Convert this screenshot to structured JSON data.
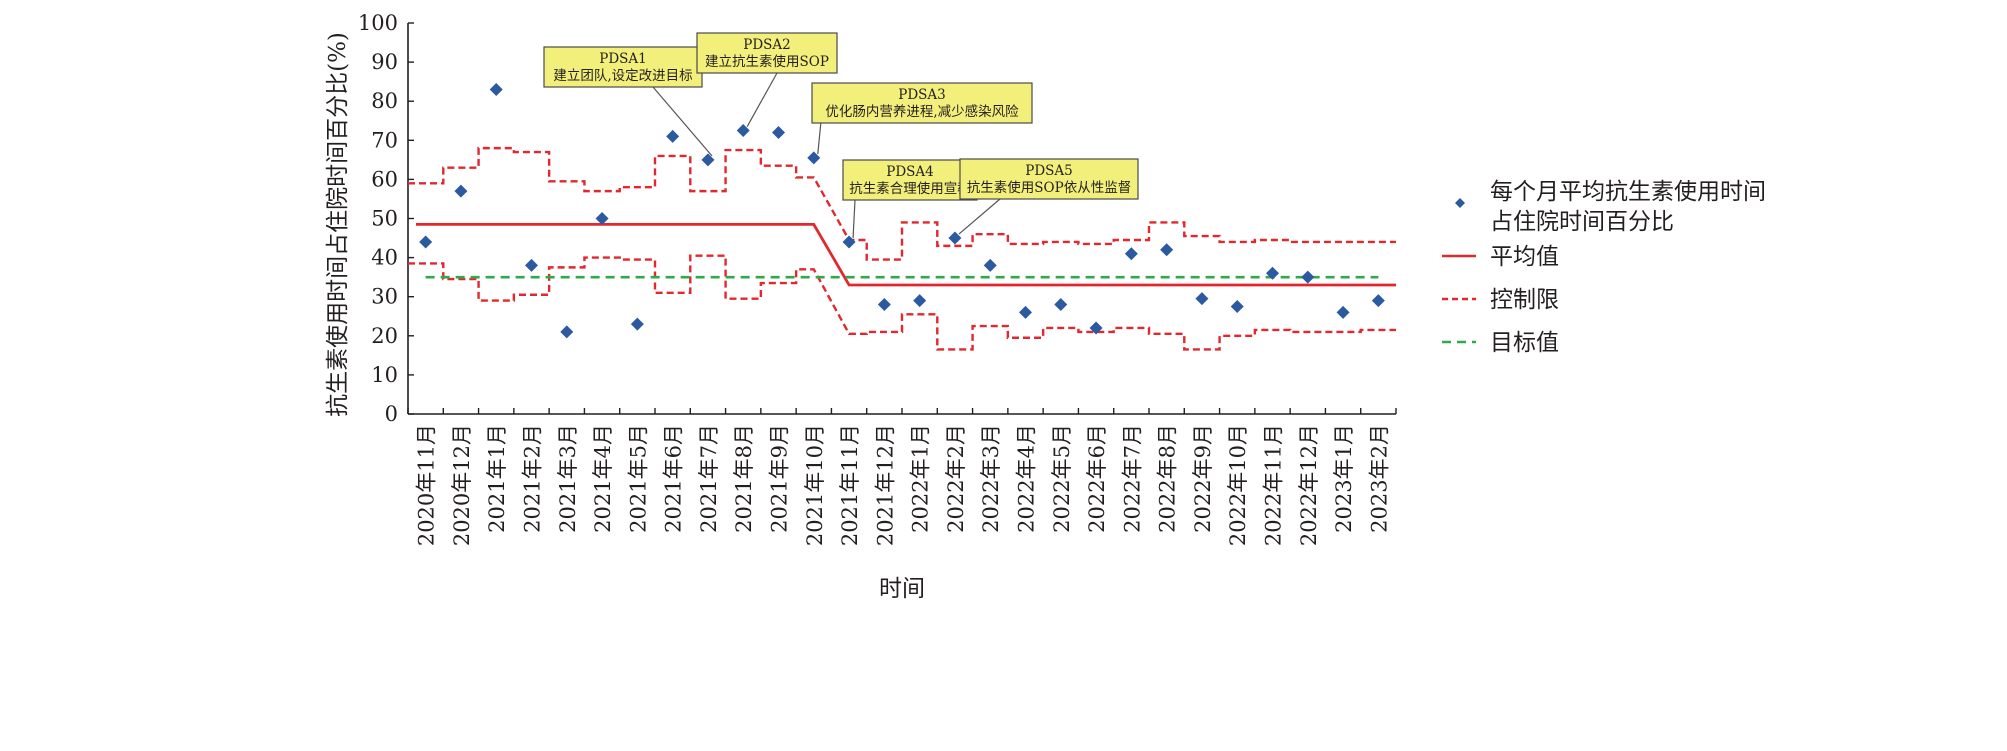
{
  "chart_data": {
    "type": "line",
    "xlabel": "时间",
    "ylabel": "抗生素使用时间占住院时间百分比(%)",
    "ylim": [
      0,
      100
    ],
    "yticks": [
      0,
      10,
      20,
      30,
      40,
      50,
      60,
      70,
      80,
      90,
      100
    ],
    "categories": [
      "2020年11月",
      "2020年12月",
      "2021年1月",
      "2021年2月",
      "2021年3月",
      "2021年4月",
      "2021年5月",
      "2021年6月",
      "2021年7月",
      "2021年8月",
      "2021年9月",
      "2021年10月",
      "2021年11月",
      "2021年12月",
      "2022年1月",
      "2022年2月",
      "2022年3月",
      "2022年4月",
      "2022年5月",
      "2022年6月",
      "2022年7月",
      "2022年8月",
      "2022年9月",
      "2022年10月",
      "2022年11月",
      "2022年12月",
      "2023年1月",
      "2023年2月"
    ],
    "series": [
      {
        "name": "每个月平均抗生素使用时间占住院时间百分比",
        "kind": "scatter",
        "color": "#2c5aa0",
        "values": [
          44,
          57,
          83,
          38,
          21,
          50,
          23,
          71,
          65,
          72.5,
          72,
          65.5,
          44,
          28,
          29,
          45,
          38,
          26,
          28,
          22,
          41,
          42,
          29.5,
          27.5,
          36,
          35,
          26,
          29
        ]
      },
      {
        "name": "平均值",
        "kind": "line",
        "color": "#e0282e",
        "segments": [
          {
            "from": "2020年11月",
            "to": "2021年10月",
            "value": 48.5
          },
          {
            "from": "2021年11月",
            "to": "2023年2月",
            "value": 33
          }
        ]
      },
      {
        "name": "控制限",
        "kind": "step",
        "color": "#e0282e",
        "upper": [
          59,
          63,
          68,
          67,
          59.5,
          57,
          58,
          66,
          57,
          67.5,
          63.5,
          60.5,
          44.5,
          39.5,
          49,
          43,
          46,
          43.5,
          44,
          43.5,
          44.5,
          49,
          45.5,
          44,
          44.5,
          44,
          44,
          44
        ],
        "lower": [
          38.5,
          34.5,
          29,
          30.5,
          37.5,
          40,
          39.5,
          31,
          40.5,
          29.5,
          33.5,
          37,
          20.5,
          21,
          25.5,
          16.5,
          22.5,
          19.5,
          22,
          21,
          22,
          20.5,
          16.5,
          20,
          21.5,
          21,
          21,
          21.5
        ]
      },
      {
        "name": "目标值",
        "kind": "line",
        "color": "#2eaa4a",
        "value": 35
      }
    ],
    "annotations": [
      {
        "title": "PDSA1",
        "text": "建立团队,设定改进目标",
        "target": "2021年7月"
      },
      {
        "title": "PDSA2",
        "text": "建立抗生素使用SOP",
        "target": "2021年8月"
      },
      {
        "title": "PDSA3",
        "text": "优化肠内营养进程,减少感染风险",
        "target": "2021年10月"
      },
      {
        "title": "PDSA4",
        "text": "抗生素合理使用宣教",
        "target": "2021年11月"
      },
      {
        "title": "PDSA5",
        "text": "抗生素使用SOP依从性监督",
        "target": "2022年2月"
      }
    ],
    "legend": {
      "position": "right",
      "items": [
        {
          "label_line1": "每个月平均抗生素使用时间",
          "label_line2": "占住院时间百分比",
          "marker": "diamond"
        },
        {
          "label": "平均值",
          "marker": "solid"
        },
        {
          "label": "控制限",
          "marker": "dashed"
        },
        {
          "label": "目标值",
          "marker": "dashed-green"
        }
      ]
    }
  }
}
